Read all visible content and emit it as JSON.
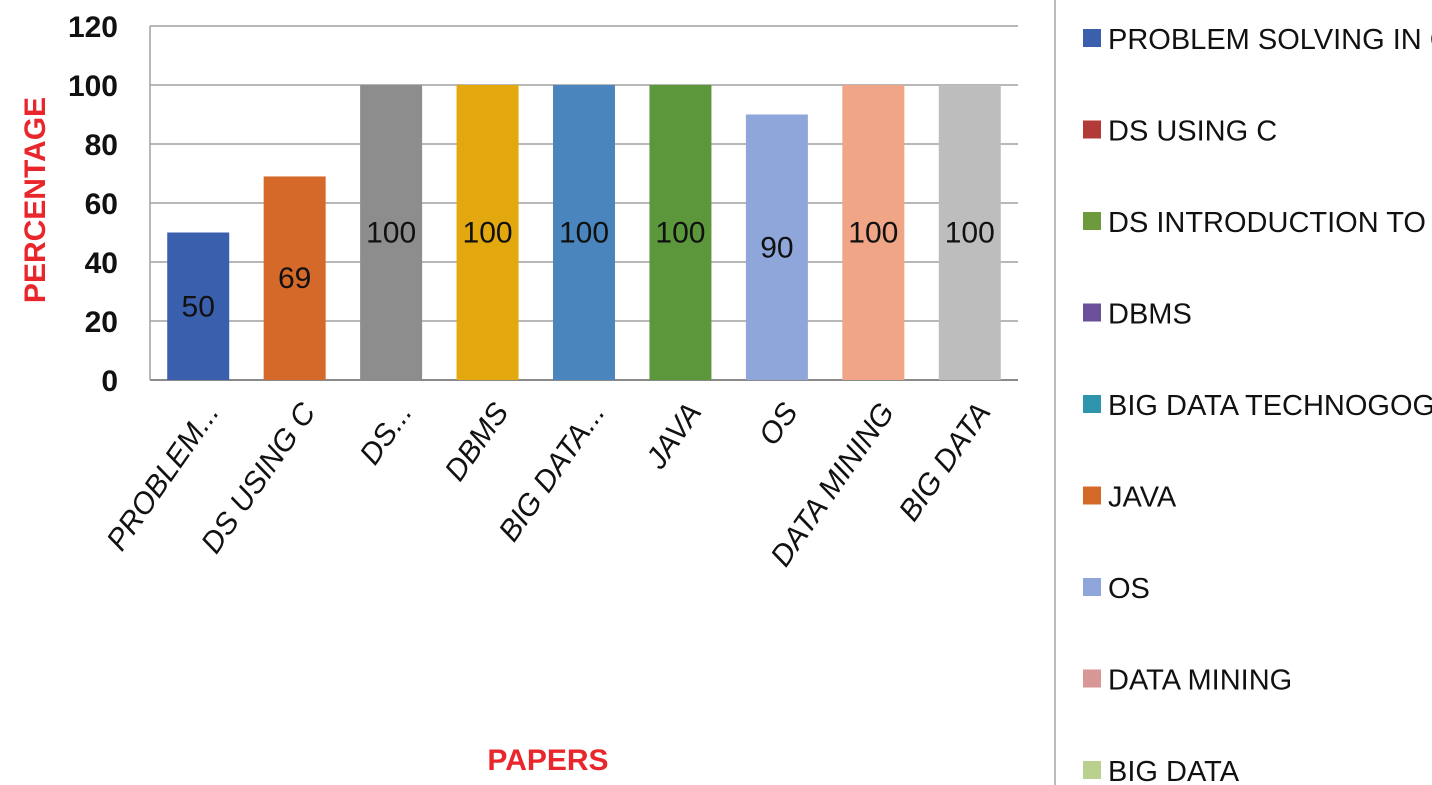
{
  "chart_data": {
    "type": "bar",
    "categories": [
      "PROBLEM...",
      "DS USING C",
      "DS...",
      "DBMS",
      "BIG DATA...",
      "JAVA",
      "OS",
      "DATA MINING",
      "BIG DATA"
    ],
    "values": [
      50,
      69,
      100,
      100,
      100,
      100,
      90,
      100,
      100
    ],
    "data_labels": [
      "50",
      "69",
      "100",
      "100",
      "100",
      "100",
      "90",
      "100",
      "100"
    ],
    "bar_colors": [
      "#3a60ad",
      "#d5692a",
      "#8d8d8d",
      "#e3a80e",
      "#4a86bd",
      "#5d973b",
      "#8ea6da",
      "#f0a587",
      "#bdbdbd"
    ],
    "xlabel": "PAPERS",
    "ylabel": "PERCENTAGE",
    "ylim": [
      0,
      120
    ],
    "yticks": [
      0,
      20,
      40,
      60,
      80,
      100,
      120
    ],
    "grid": true,
    "legend_position": "right",
    "legend": [
      {
        "label": "PROBLEM SOLVING IN C",
        "color": "#3a60ad"
      },
      {
        "label": "DS USING  C",
        "color": "#b23b37"
      },
      {
        "label": "DS INTRODUCTION  TO R",
        "color": "#6d9a3c"
      },
      {
        "label": "DBMS",
        "color": "#6b4f9a"
      },
      {
        "label": "BIG DATA TECHNOGOGY",
        "color": "#2f95ad"
      },
      {
        "label": "JAVA",
        "color": "#d5692a"
      },
      {
        "label": "OS",
        "color": "#8ea6da"
      },
      {
        "label": "DATA MINING",
        "color": "#d79795"
      },
      {
        "label": "BIG DATA",
        "color": "#b9d08f"
      }
    ]
  }
}
